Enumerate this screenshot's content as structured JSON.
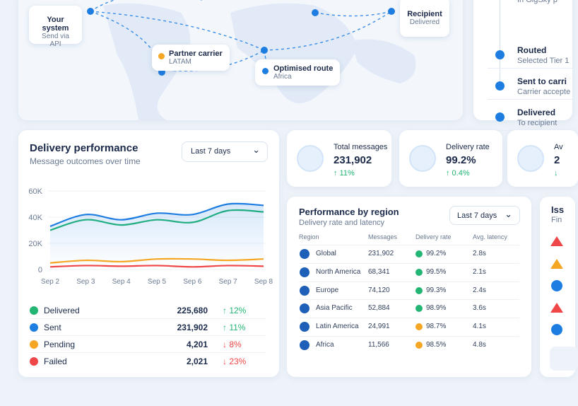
{
  "map": {
    "nodes": [
      {
        "label": "Your system",
        "sub": "Send via API"
      },
      {
        "label": "Partner carrier",
        "sub": "LATAM"
      },
      {
        "label": "Optimised route",
        "sub": "Africa"
      },
      {
        "label": "Recipient",
        "sub": "Delivered"
      }
    ]
  },
  "timeline": [
    {
      "sub": "In GigSky p"
    },
    {
      "label": "Routed",
      "sub": "Selected Tier 1"
    },
    {
      "label": "Sent to carri",
      "sub": "Carrier accepte"
    },
    {
      "label": "Delivered",
      "sub": "To recipient"
    }
  ],
  "chart_data": {
    "type": "line",
    "title": "Delivery performance",
    "subtitle": "Message outcomes over time",
    "range": "Last 7 days",
    "categories": [
      "Sep 2",
      "Sep 3",
      "Sep 4",
      "Sep 5",
      "Sep 6",
      "Sep 7",
      "Sep 8"
    ],
    "ylim": [
      0,
      60000
    ],
    "yticks": [
      0,
      {
        "value": 20000,
        "label": "20K"
      },
      {
        "value": 40000,
        "label": "40K"
      },
      {
        "value": 60000,
        "label": "60K"
      }
    ],
    "grid": true,
    "series": [
      {
        "name": "Delivered",
        "color": "#22b573",
        "values": [
          30000,
          38000,
          34000,
          38000,
          36000,
          45000,
          44000
        ]
      },
      {
        "name": "Sent",
        "color": "#1e7de0",
        "values": [
          33000,
          42000,
          38000,
          43000,
          42000,
          50000,
          49000
        ]
      },
      {
        "name": "Pending",
        "color": "#f5a623",
        "values": [
          5000,
          7000,
          6000,
          8000,
          8000,
          7000,
          8000
        ]
      },
      {
        "name": "Failed",
        "color": "#ef4747",
        "values": [
          2000,
          3000,
          2500,
          3000,
          2000,
          3000,
          2500
        ]
      }
    ]
  },
  "delivery_summary": [
    {
      "value": "225,680",
      "change": "↑ 12%"
    },
    {
      "value": "231,902",
      "change": "↑ 11%"
    },
    {
      "value": "4,201",
      "change": "↓ 8%"
    },
    {
      "value": "2,021",
      "change": "↓ 23%"
    }
  ],
  "kpis": [
    {
      "title": "Total messages",
      "value": "231,902",
      "change": "↑ 11%"
    },
    {
      "title": "Delivery rate",
      "value": "99.2%",
      "change": "↑ 0.4%"
    },
    {
      "title": "Av",
      "value": "2",
      "change": "↓"
    }
  ],
  "region": {
    "title": "Performance by region",
    "subtitle": "Delivery rate and latency",
    "range": "Last 7 days",
    "columns": [
      "Region",
      "Messages",
      "Delivery rate",
      "Avg. latency"
    ],
    "rows": [
      [
        "Global",
        "231,902",
        "99.2%",
        "2.8s"
      ],
      [
        "North America",
        "68,341",
        "99.5%",
        "2.1s"
      ],
      [
        "Europe",
        "74,120",
        "99.3%",
        "2.4s"
      ],
      [
        "Asia Pacific",
        "52,884",
        "98.9%",
        "3.6s"
      ],
      [
        "Latin America",
        "24,991",
        "98.7%",
        "4.1s"
      ],
      [
        "Africa",
        "11,566",
        "98.5%",
        "4.8s"
      ]
    ],
    "status_colors": [
      "#22b573",
      "#22b573",
      "#22b573",
      "#22b573",
      "#f5a623",
      "#f5a623"
    ]
  },
  "issues": {
    "title": "Iss",
    "subtitle": "Fin"
  }
}
